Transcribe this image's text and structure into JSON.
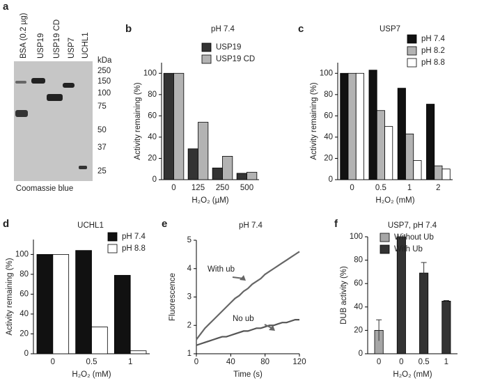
{
  "gel": {
    "panel": "a",
    "lanes": [
      "BSA (0.2 µg)",
      "USP19",
      "USP19 CD",
      "USP7",
      "UCHL1"
    ],
    "unit": "kDa",
    "markers": [
      "250",
      "150",
      "100",
      "75",
      "50",
      "37",
      "25"
    ],
    "caption": "Coomassie blue"
  },
  "chart_data": [
    {
      "type": "bar",
      "panel": "b",
      "title": "pH 7.4",
      "xlabel": "H₂O₂ (µM)",
      "ylabel": "Activity remaining (%)",
      "categories": [
        "0",
        "125",
        "250",
        "500"
      ],
      "ylim": [
        0,
        110
      ],
      "yticks": [
        0,
        20,
        40,
        60,
        80,
        100
      ],
      "legend": "upper right",
      "series": [
        {
          "name": "USP19",
          "color": "#333333",
          "values": [
            100,
            29,
            11,
            6
          ]
        },
        {
          "name": "USP19 CD",
          "color": "#b3b3b3",
          "values": [
            100,
            54,
            22,
            7
          ]
        }
      ]
    },
    {
      "type": "bar",
      "panel": "c",
      "title": "USP7",
      "xlabel": "H₂O₂ (mM)",
      "ylabel": "Activity remaining (%)",
      "categories": [
        "0",
        "0.5",
        "1",
        "2"
      ],
      "ylim": [
        0,
        110
      ],
      "yticks": [
        0,
        20,
        40,
        60,
        80,
        100
      ],
      "legend": "upper right",
      "series": [
        {
          "name": "pH 7.4",
          "color": "#111111",
          "values": [
            100,
            103,
            86,
            71
          ]
        },
        {
          "name": "pH 8.2",
          "color": "#b3b3b3",
          "values": [
            100,
            65,
            43,
            13
          ]
        },
        {
          "name": "pH 8.8",
          "color": "#ffffff",
          "values": [
            100,
            50,
            18,
            10
          ]
        }
      ]
    },
    {
      "type": "bar",
      "panel": "d",
      "title": "UCHL1",
      "xlabel": "H₂O₂ (mM)",
      "ylabel": "Activity remaining (%)",
      "categories": [
        "0",
        "0.5",
        "1"
      ],
      "ylim": [
        0,
        115
      ],
      "yticks": [
        0,
        20,
        40,
        60,
        80,
        100
      ],
      "legend": "upper right",
      "series": [
        {
          "name": "pH 7.4",
          "color": "#111111",
          "values": [
            100,
            104,
            79
          ]
        },
        {
          "name": "pH 8.8",
          "color": "#ffffff",
          "values": [
            100,
            27,
            3
          ]
        }
      ]
    },
    {
      "type": "line",
      "panel": "e",
      "title": "pH 7.4",
      "xlabel": "Time (s)",
      "ylabel": "Fluorescence",
      "xlim": [
        0,
        120
      ],
      "xticks": [
        0,
        40,
        80,
        120
      ],
      "ylim": [
        1,
        5
      ],
      "yticks": [
        1,
        2,
        3,
        4,
        5
      ],
      "x": [
        0,
        5,
        10,
        15,
        20,
        25,
        30,
        35,
        40,
        45,
        50,
        55,
        60,
        65,
        70,
        75,
        80,
        85,
        90,
        95,
        100,
        105,
        110,
        115,
        120
      ],
      "series": [
        {
          "name": "With ub",
          "color": "#666666",
          "values": [
            1.5,
            1.7,
            1.9,
            2.05,
            2.2,
            2.35,
            2.5,
            2.65,
            2.8,
            2.95,
            3.05,
            3.2,
            3.3,
            3.45,
            3.55,
            3.65,
            3.8,
            3.9,
            4.0,
            4.1,
            4.2,
            4.3,
            4.4,
            4.5,
            4.6
          ]
        },
        {
          "name": "No ub",
          "color": "#555555",
          "values": [
            1.3,
            1.35,
            1.4,
            1.45,
            1.5,
            1.55,
            1.6,
            1.6,
            1.65,
            1.7,
            1.75,
            1.8,
            1.8,
            1.85,
            1.9,
            1.9,
            1.95,
            2.0,
            2.0,
            2.05,
            2.1,
            2.1,
            2.15,
            2.2,
            2.2
          ]
        }
      ]
    },
    {
      "type": "bar",
      "panel": "f",
      "title": "USP7, pH 7.4",
      "xlabel": "H₂O₂ (mM)",
      "ylabel": "DUB activity (%)",
      "categories": [
        "0",
        "0",
        "0.5",
        "1"
      ],
      "ylim": [
        0,
        100
      ],
      "yticks": [
        0,
        20,
        40,
        60,
        80,
        100
      ],
      "legend": "upper right",
      "grouped": false,
      "series": [
        {
          "name": "Without Ub",
          "color": "#a6a6a6",
          "values": [
            20,
            null,
            null,
            null
          ],
          "errors": [
            9,
            null,
            null,
            null
          ]
        },
        {
          "name": "With Ub",
          "color": "#333333",
          "values": [
            null,
            100,
            69,
            45
          ],
          "errors": [
            null,
            0,
            9,
            0.5
          ]
        }
      ]
    }
  ]
}
